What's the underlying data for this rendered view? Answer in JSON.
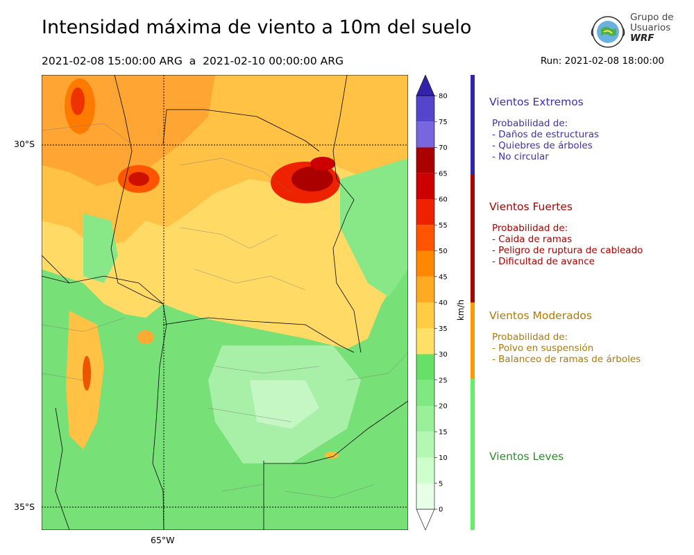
{
  "title": "Intensidad máxima de viento a 10m del suelo",
  "range": "2021-02-08 15:00:00 ARG  a  2021-02-10 00:00:00 ARG",
  "run": "Run: 2021-02-08 18:00:00",
  "logo": {
    "line1": "Grupo de",
    "line2": "Usuarios",
    "line3": "WRF"
  },
  "map": {
    "lat_labels": [
      "30°S",
      "35°S"
    ],
    "lon_labels": [
      "65°W"
    ]
  },
  "colorbar": {
    "unit": "km/h",
    "ticks": [
      "0",
      "5",
      "10",
      "15",
      "20",
      "25",
      "30",
      "35",
      "40",
      "45",
      "50",
      "55",
      "60",
      "65",
      "70",
      "75",
      "80"
    ],
    "colors": [
      "#e6ffe6",
      "#ccffcc",
      "#b3f7b3",
      "#99f099",
      "#80e880",
      "#66e066",
      "#ffe066",
      "#ffcc44",
      "#ffaa22",
      "#ff8800",
      "#ff5500",
      "#ee2200",
      "#cc0000",
      "#aa0000",
      "#7766dd",
      "#5544cc",
      "#4433bb"
    ],
    "extend_color": "#3322aa"
  },
  "categories": [
    {
      "title": "Vientos Extremos",
      "color": "#3f2fb0",
      "desc": "Probabilidad de:\n- Daños de estructuras\n- Quiebres de árboles\n- No circular"
    },
    {
      "title": "Vientos Fuertes",
      "color": "#aa0000",
      "desc": "Probabilidad de:\n- Caida de ramas\n- Peligro de ruptura de cableado\n- Dificultad de avance"
    },
    {
      "title": "Vientos Moderados",
      "color": "#b07a00",
      "desc": "Probabilidad de:\n- Polvo en suspensión\n- Balanceo de ramas de árboles"
    },
    {
      "title": "Vientos Leves",
      "color": "#2e8b2e",
      "desc": ""
    }
  ],
  "band_colors": [
    "#3322aa",
    "#aa0000",
    "#ff9900",
    "#66ee66"
  ]
}
